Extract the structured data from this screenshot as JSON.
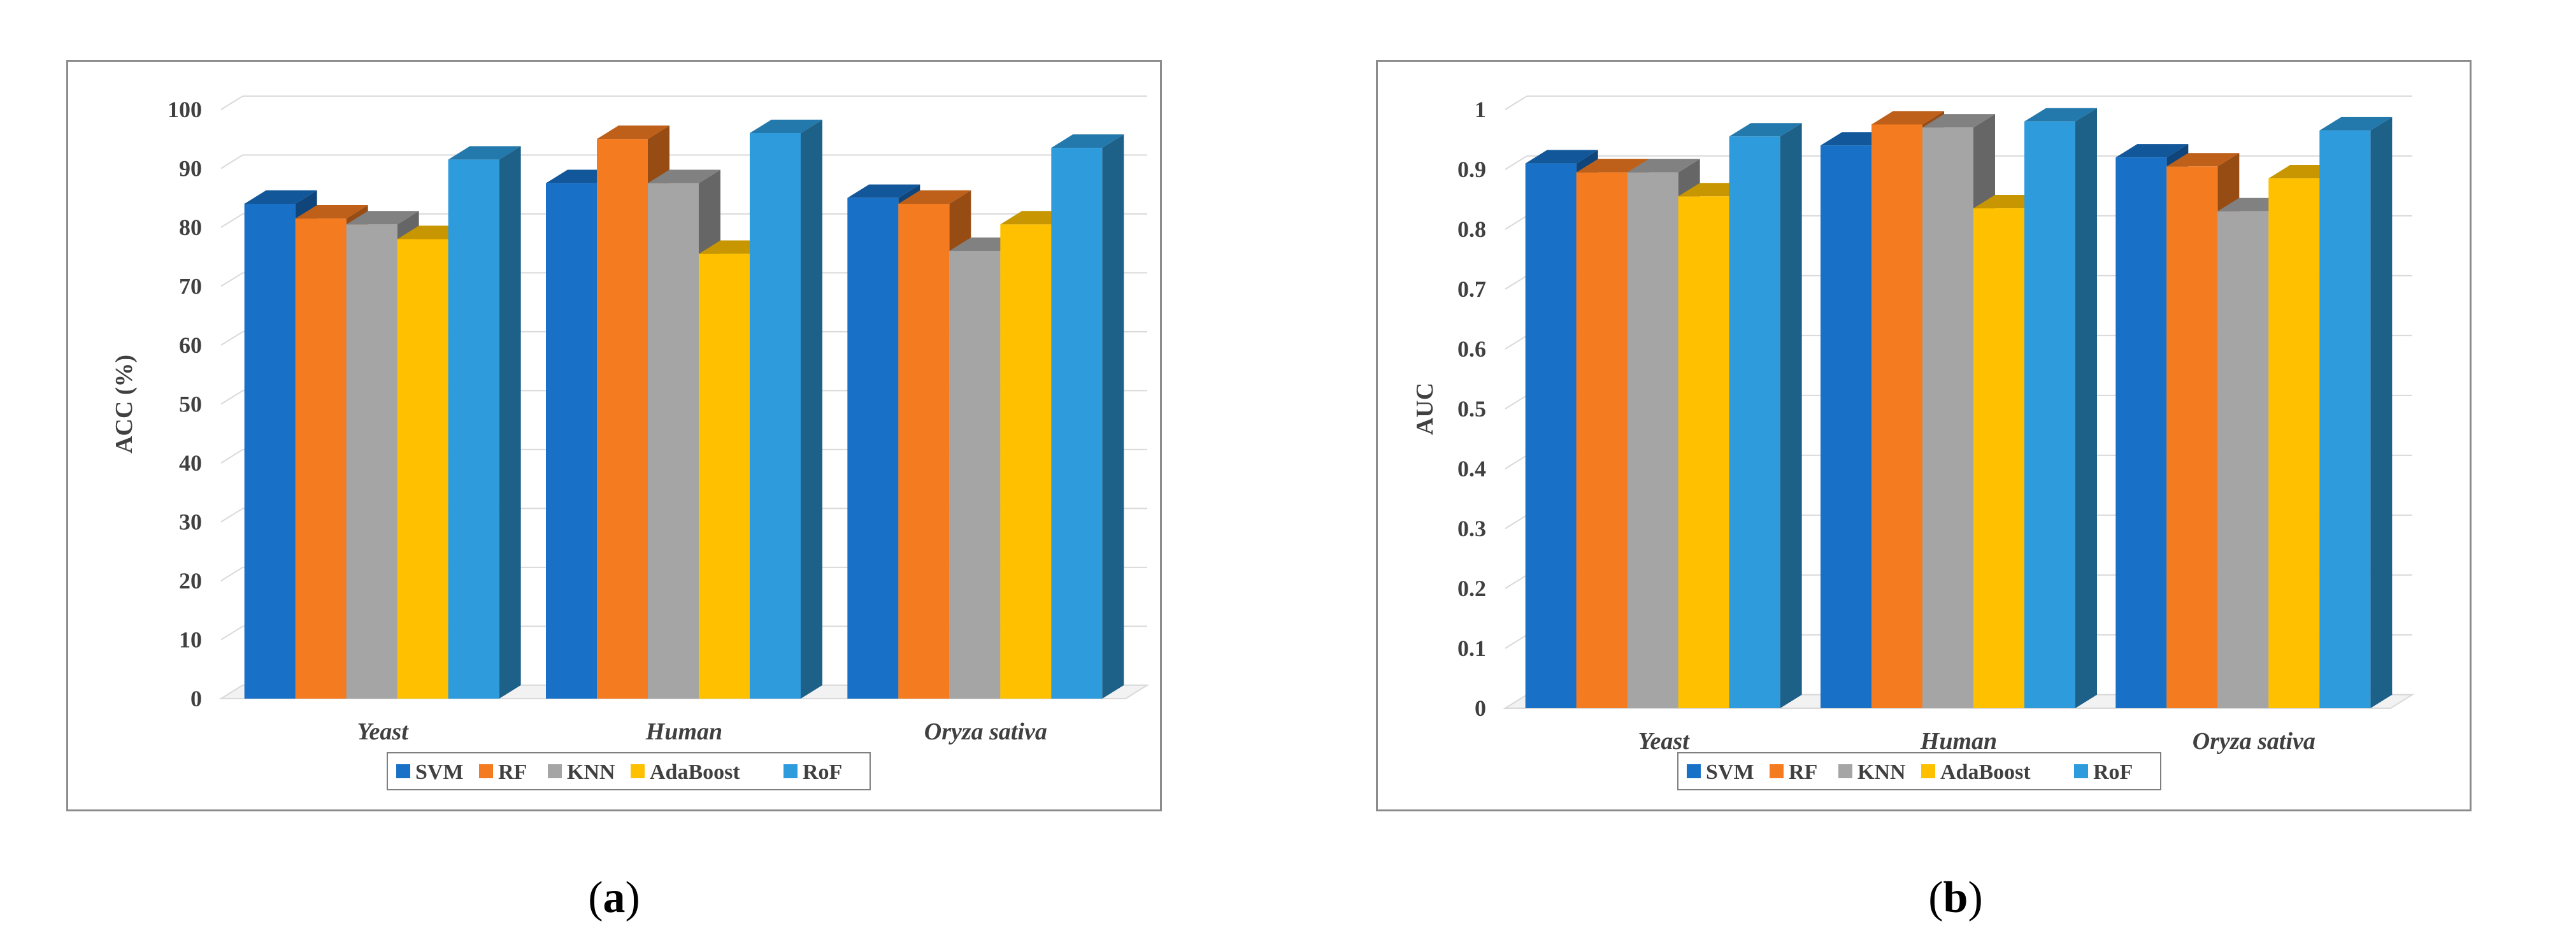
{
  "chart_data": [
    {
      "type": "bar",
      "panel_label": "a",
      "title": "",
      "xlabel": "",
      "ylabel": "ACC (%)",
      "ylim": [
        0,
        100
      ],
      "yticks": [
        "0",
        "10",
        "20",
        "30",
        "40",
        "50",
        "60",
        "70",
        "80",
        "90",
        "100"
      ],
      "categories": [
        "Yeast",
        "Human",
        "Oryza sativa"
      ],
      "grid": true,
      "legend_position": "bottom",
      "series": [
        {
          "name": "SVM",
          "color": "#1870c7",
          "values": [
            84,
            87.5,
            85
          ]
        },
        {
          "name": "RF",
          "color": "#f47b20",
          "values": [
            81.5,
            95,
            84
          ]
        },
        {
          "name": "KNN",
          "color": "#a5a5a5",
          "values": [
            80.5,
            87.5,
            76
          ]
        },
        {
          "name": "AdaBoost",
          "color": "#ffc000",
          "values": [
            78,
            75.5,
            80.5
          ]
        },
        {
          "name": "RoF",
          "color": "#2e9bdc",
          "values": [
            91.5,
            96,
            93.5
          ]
        }
      ]
    },
    {
      "type": "bar",
      "panel_label": "b",
      "title": "",
      "xlabel": "",
      "ylabel": "AUC",
      "ylim": [
        0,
        1
      ],
      "yticks": [
        "0",
        "0.1",
        "0.2",
        "0.3",
        "0.4",
        "0.5",
        "0.6",
        "0.7",
        "0.8",
        "0.9",
        "1"
      ],
      "categories": [
        "Yeast",
        "Human",
        "Oryza sativa"
      ],
      "grid": true,
      "legend_position": "bottom",
      "series": [
        {
          "name": "SVM",
          "color": "#1870c7",
          "values": [
            0.91,
            0.94,
            0.92
          ]
        },
        {
          "name": "RF",
          "color": "#f47b20",
          "values": [
            0.895,
            0.975,
            0.905
          ]
        },
        {
          "name": "KNN",
          "color": "#a5a5a5",
          "values": [
            0.895,
            0.97,
            0.83
          ]
        },
        {
          "name": "AdaBoost",
          "color": "#ffc000",
          "values": [
            0.855,
            0.835,
            0.885
          ]
        },
        {
          "name": "RoF",
          "color": "#2e9bdc",
          "values": [
            0.955,
            0.98,
            0.965
          ]
        }
      ]
    }
  ]
}
